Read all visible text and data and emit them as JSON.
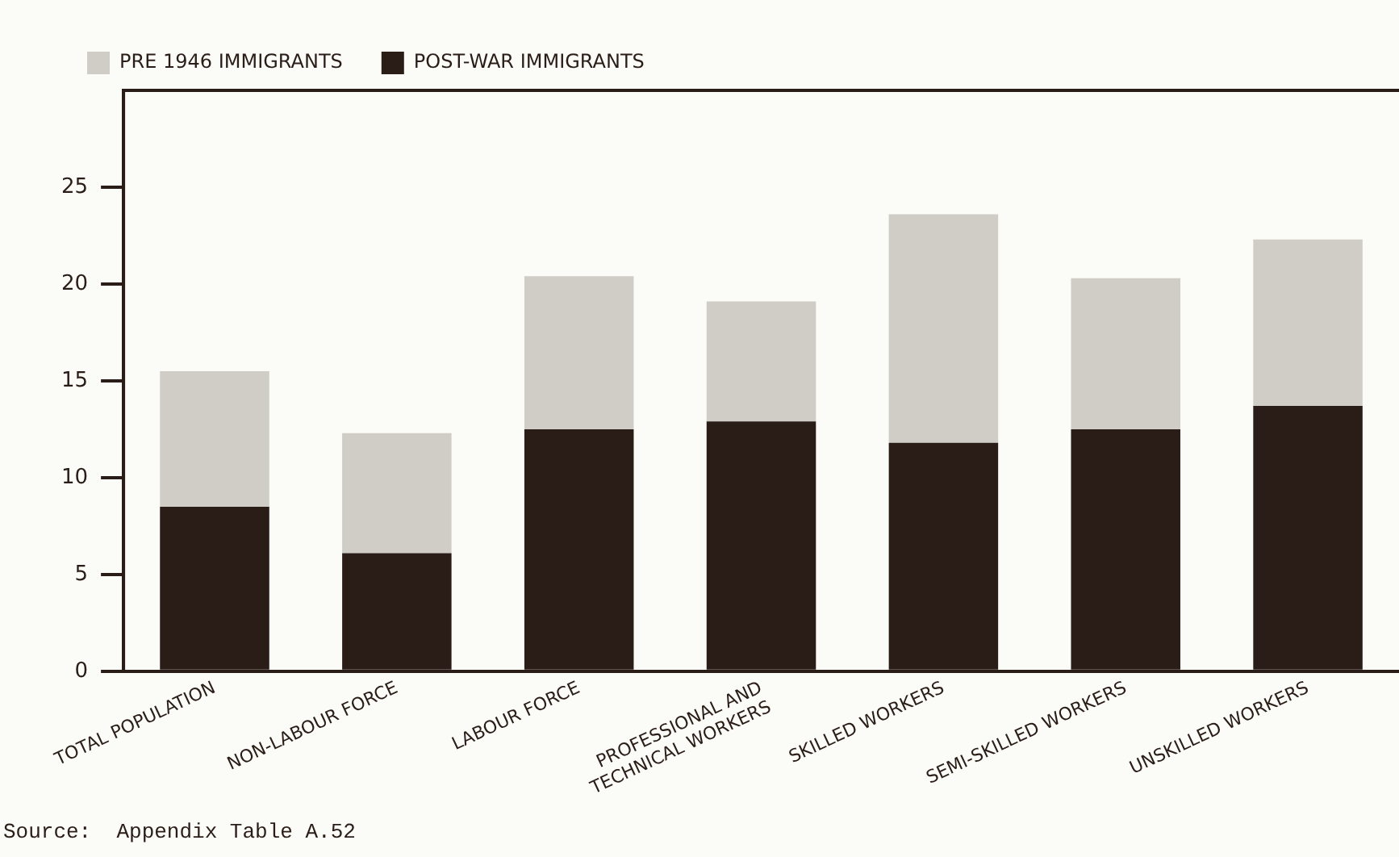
{
  "chart_data": {
    "type": "bar",
    "stacked": true,
    "categories": [
      "TOTAL POPULATION",
      "NON-LABOUR FORCE",
      "LABOUR FORCE",
      "PROFESSIONAL AND\nTECHNICAL WORKERS",
      "SKILLED WORKERS",
      "SEMI-SKILLED WORKERS",
      "UNSKILLED WORKERS"
    ],
    "series": [
      {
        "name": "POST-WAR IMMIGRANTS",
        "color": "#2a1d17",
        "values": [
          8.5,
          6.1,
          12.5,
          12.9,
          11.8,
          12.5,
          13.7
        ]
      },
      {
        "name": "PRE 1946 IMMIGRANTS",
        "color": "#cfcdc6",
        "values": [
          7.0,
          6.2,
          7.9,
          6.2,
          11.8,
          7.8,
          8.6
        ]
      }
    ],
    "ylim": [
      0,
      30
    ],
    "yticks": [
      0,
      5,
      10,
      15,
      20,
      25
    ],
    "grid": false,
    "legend": "top left",
    "annotations": [
      "Source:  Appendix Table A.52"
    ]
  }
}
